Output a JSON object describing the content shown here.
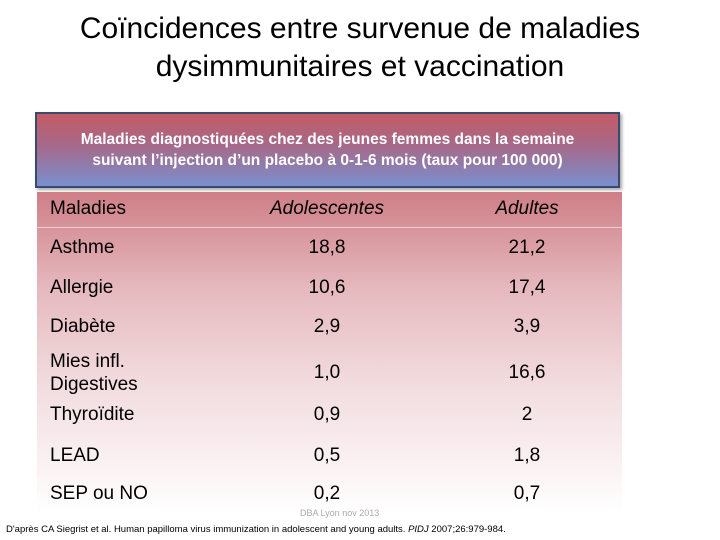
{
  "title_line1": "Coïncidences entre survenue de maladies",
  "title_line2": "dysimmunitaires et vaccination",
  "box_line1": "Maladies diagnostiquées chez des jeunes femmes dans la semaine",
  "box_line2": "suivant l’injection d’un placebo à 0-1-6 mois (taux pour 100 000)",
  "table": {
    "headers": [
      "Maladies",
      "Adolescentes",
      "Adultes"
    ],
    "rows": [
      {
        "disease": "Asthme",
        "adolescentes": "18,8",
        "adultes": "21,2"
      },
      {
        "disease": "Allergie",
        "adolescentes": "10,6",
        "adultes": "17,4"
      },
      {
        "disease": "Diabète",
        "adolescentes": "2,9",
        "adultes": "3,9"
      },
      {
        "disease_line1": "Mies infl.",
        "disease_line2": "Digestives",
        "adolescentes": "1,0",
        "adultes": "16,6"
      },
      {
        "disease": "Thyroïdite",
        "adolescentes": "0,9",
        "adultes": "2"
      },
      {
        "disease": "LEAD",
        "adolescentes": "0,5",
        "adultes": "1,8"
      },
      {
        "disease": "SEP ou NO",
        "adolescentes": "0,2",
        "adultes": "0,7"
      }
    ]
  },
  "watermark": "DBA Lyon nov 2013",
  "footer_main": "D'après CA Siegrist et al. Human papilloma virus immunization in adolescent and young adults. ",
  "footer_journal": "PIDJ",
  "footer_tail": " 2007;26:979-984."
}
